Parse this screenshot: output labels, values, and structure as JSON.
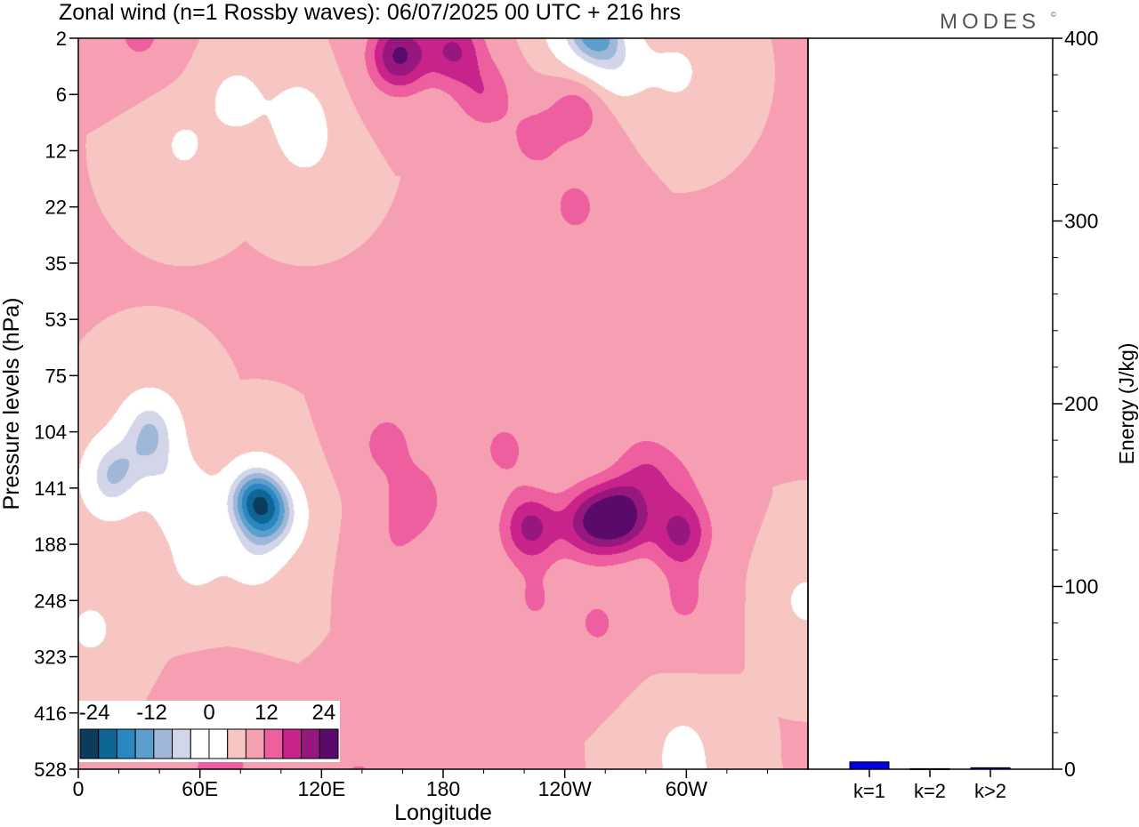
{
  "title": "Zonal wind (n=1 Rossby waves):  06/07/2025  00 UTC  + 216 hrs",
  "brand": "MODES",
  "brand_mark": "©",
  "chart_data": [
    {
      "type": "heatmap",
      "xlabel": "Longitude",
      "ylabel": "Pressure levels (hPa)",
      "x_ticks": [
        "0",
        "60E",
        "120E",
        "180",
        "120W",
        "60W"
      ],
      "x_tick_values": [
        0,
        60,
        120,
        180,
        240,
        300
      ],
      "xlim": [
        0,
        360
      ],
      "y_ticks": [
        "2",
        "6",
        "12",
        "22",
        "35",
        "53",
        "75",
        "104",
        "141",
        "188",
        "248",
        "323",
        "416",
        "528"
      ],
      "colorbar": {
        "labels": [
          "-24",
          "-12",
          "0",
          "12",
          "24"
        ],
        "label_values": [
          -24,
          -12,
          0,
          12,
          24
        ],
        "levels": [
          -27,
          -24,
          -21,
          -18,
          -15,
          -12,
          -9,
          -6,
          -3,
          0,
          3,
          6,
          9,
          12,
          15,
          18,
          21,
          24,
          27
        ],
        "colors": [
          "#0b3c5d",
          "#0e6697",
          "#2a87c0",
          "#5d9fcc",
          "#9fb7d9",
          "#d3d5e8",
          "#ffffff",
          "#ffffff",
          "#f7c6c2",
          "#f69fb3",
          "#ee5fa0",
          "#c8238b",
          "#96187f",
          "#5a0a6b"
        ]
      },
      "fields": [
        {
          "lon": 15,
          "level": 8,
          "value": -5.8
        },
        {
          "lon": 35,
          "level": 6.9,
          "value": -10.5
        },
        {
          "lon": 18,
          "level": 7.6,
          "value": -7.8
        },
        {
          "lon": 40,
          "level": 7.6,
          "value": -5.6
        },
        {
          "lon": 53,
          "level": 8.3,
          "value": -7.8
        },
        {
          "lon": 58,
          "level": 9.3,
          "value": -4.6
        },
        {
          "lon": 97,
          "level": 8.5,
          "value": -10.0
        },
        {
          "lon": 87,
          "level": 8.2,
          "value": -19.0
        },
        {
          "lon": 86,
          "level": 9.2,
          "value": -5.6
        },
        {
          "lon": 6,
          "level": 10.5,
          "value": -4.0
        },
        {
          "lon": 152,
          "level": 7.2,
          "value": 4.3
        },
        {
          "lon": 166,
          "level": 8.2,
          "value": 5.3
        },
        {
          "lon": 156,
          "level": 9.0,
          "value": 2.4
        },
        {
          "lon": 210,
          "level": 7.3,
          "value": 3.8
        },
        {
          "lon": 223,
          "level": 8.7,
          "value": 10.0
        },
        {
          "lon": 225,
          "level": 10.0,
          "value": 3.2
        },
        {
          "lon": 252,
          "level": 8.6,
          "value": 10.2
        },
        {
          "lon": 268,
          "level": 8.5,
          "value": 13.2
        },
        {
          "lon": 256,
          "level": 10.4,
          "value": 3.5
        },
        {
          "lon": 279,
          "level": 7.6,
          "value": 4.5
        },
        {
          "lon": 297,
          "level": 8.8,
          "value": 9.6
        },
        {
          "lon": 294,
          "level": 7.9,
          "value": 3.1
        },
        {
          "lon": 299,
          "level": 10.0,
          "value": 3.5
        },
        {
          "lon": 158,
          "level": 0.3,
          "value": 12.5
        },
        {
          "lon": 185,
          "level": 0.2,
          "value": 9.0
        },
        {
          "lon": 200,
          "level": 1.0,
          "value": 5.3
        },
        {
          "lon": 225,
          "level": 1.8,
          "value": 4.0
        },
        {
          "lon": 246,
          "level": 1.3,
          "value": 4.5
        },
        {
          "lon": 245,
          "level": 3.0,
          "value": 3.9
        },
        {
          "lon": 30,
          "level": -0.1,
          "value": 4.0
        },
        {
          "lon": 255,
          "level": -0.1,
          "value": -16.0
        },
        {
          "lon": 268,
          "level": 0.5,
          "value": -6.0
        },
        {
          "lon": 240,
          "level": -0.2,
          "value": -4.0
        },
        {
          "lon": 295,
          "level": 0.6,
          "value": -4.0
        },
        {
          "lon": 78,
          "level": 1.1,
          "value": -5.0
        },
        {
          "lon": 108,
          "level": 1.3,
          "value": -4.5
        },
        {
          "lon": 112,
          "level": 1.9,
          "value": -4.0
        },
        {
          "lon": 52,
          "level": 1.9,
          "value": -3.6
        },
        {
          "lon": 70,
          "level": 12.4,
          "value": 4.5
        },
        {
          "lon": 70,
          "level": 13.3,
          "value": 5.0
        },
        {
          "lon": 138,
          "level": 13.3,
          "value": 4.2
        },
        {
          "lon": 298,
          "level": 12.6,
          "value": -4.2
        },
        {
          "lon": 300,
          "level": 13.4,
          "value": -4.0
        },
        {
          "lon": 359,
          "level": 10.0,
          "value": -4.0
        }
      ]
    },
    {
      "type": "bar",
      "categories": [
        "k=1",
        "k=2",
        "k>2"
      ],
      "values": [
        4,
        0.3,
        0.8
      ],
      "ylabel": "Energy (J/kg)",
      "ylim": [
        0,
        400
      ],
      "y_ticks": [
        "0",
        "100",
        "200",
        "300",
        "400"
      ],
      "y_tick_values": [
        0,
        100,
        200,
        300,
        400
      ],
      "y_minor_step": 20,
      "bar_color": "#0000e6"
    }
  ]
}
